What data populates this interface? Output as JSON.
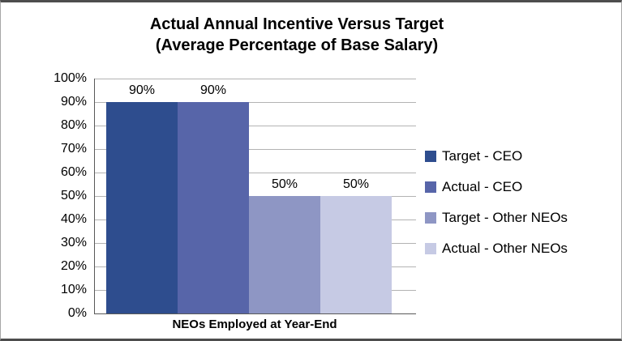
{
  "frame": {
    "outer_border_color": "#4d4d4d",
    "side_border_color": "#a6a6a6",
    "background": "#ffffff"
  },
  "chart_data": {
    "type": "bar",
    "title": "Actual Annual Incentive Versus Target",
    "subtitle": "(Average Percentage of Base Salary)",
    "xlabel": "NEOs Employed at Year-End",
    "ylabel": "",
    "categories": [
      "NEOs Employed at Year-End"
    ],
    "series": [
      {
        "name": "Target - CEO",
        "color": "#2e4d8e",
        "values": [
          90
        ],
        "data_label": "90%"
      },
      {
        "name": "Actual - CEO",
        "color": "#5765a9",
        "values": [
          90
        ],
        "data_label": "90%"
      },
      {
        "name": "Target - Other NEOs",
        "color": "#8e96c4",
        "values": [
          50
        ],
        "data_label": "50%"
      },
      {
        "name": "Actual - Other NEOs",
        "color": "#c6cae4",
        "values": [
          50
        ],
        "data_label": "50%"
      }
    ],
    "ylim": [
      0,
      100
    ],
    "yticks": [
      {
        "value": 0,
        "label": "0%"
      },
      {
        "value": 10,
        "label": "10%"
      },
      {
        "value": 20,
        "label": "20%"
      },
      {
        "value": 30,
        "label": "30%"
      },
      {
        "value": 40,
        "label": "40%"
      },
      {
        "value": 50,
        "label": "50%"
      },
      {
        "value": 60,
        "label": "60%"
      },
      {
        "value": 70,
        "label": "70%"
      },
      {
        "value": 80,
        "label": "80%"
      },
      {
        "value": 90,
        "label": "90%"
      },
      {
        "value": 100,
        "label": "100%"
      }
    ],
    "grid": true,
    "gridline_color": "#b3b3b3",
    "axis_color": "#595959",
    "legend_position": "right"
  }
}
